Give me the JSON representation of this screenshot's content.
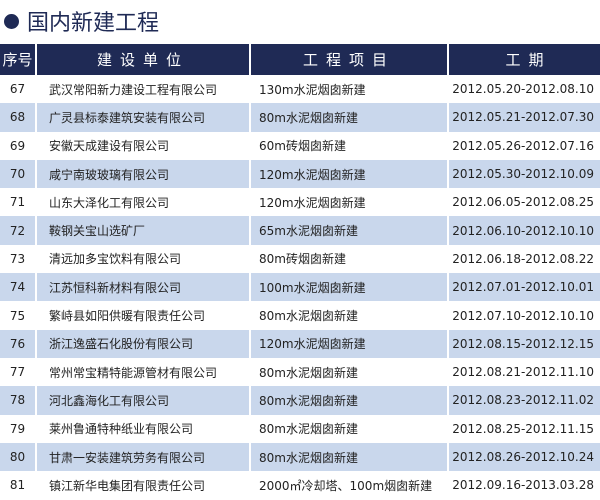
{
  "title": "国内新建工程",
  "colors": {
    "header_bg": "#1f2a55",
    "alt_row": "#c9d7ec"
  },
  "headers": [
    "序号",
    "建设单位",
    "工程项目",
    "工期"
  ],
  "rows": [
    {
      "seq": "67",
      "unit": "武汉常阳新力建设工程有限公司",
      "project": "130m水泥烟囱新建",
      "period": "2012.05.20-2012.08.10"
    },
    {
      "seq": "68",
      "unit": "广灵县标泰建筑安装有限公司",
      "project": "80m水泥烟囱新建",
      "period": "2012.05.21-2012.07.30"
    },
    {
      "seq": "69",
      "unit": "安徽天成建设有限公司",
      "project": "60m砖烟囱新建",
      "period": "2012.05.26-2012.07.16"
    },
    {
      "seq": "70",
      "unit": "咸宁南玻玻璃有限公司",
      "project": "120m水泥烟囱新建",
      "period": "2012.05.30-2012.10.09"
    },
    {
      "seq": "71",
      "unit": "山东大泽化工有限公司",
      "project": "120m水泥烟囱新建",
      "period": "2012.06.05-2012.08.25"
    },
    {
      "seq": "72",
      "unit": "鞍钢关宝山选矿厂",
      "project": "65m水泥烟囱新建",
      "period": "2012.06.10-2012.10.10"
    },
    {
      "seq": "73",
      "unit": "清远加多宝饮料有限公司",
      "project": "80m砖烟囱新建",
      "period": "2012.06.18-2012.08.22"
    },
    {
      "seq": "74",
      "unit": "江苏恒科新材料有限公司",
      "project": "100m水泥烟囱新建",
      "period": "2012.07.01-2012.10.01"
    },
    {
      "seq": "75",
      "unit": "繁峙县如阳供暖有限责任公司",
      "project": "80m水泥烟囱新建",
      "period": "2012.07.10-2012.10.10"
    },
    {
      "seq": "76",
      "unit": "浙江逸盛石化股份有限公司",
      "project": "120m水泥烟囱新建",
      "period": "2012.08.15-2012.12.15"
    },
    {
      "seq": "77",
      "unit": "常州常宝精特能源管材有限公司",
      "project": "80m水泥烟囱新建",
      "period": "2012.08.21-2012.11.10"
    },
    {
      "seq": "78",
      "unit": "河北鑫海化工有限公司",
      "project": "80m水泥烟囱新建",
      "period": "2012.08.23-2012.11.02"
    },
    {
      "seq": "79",
      "unit": "莱州鲁通特种纸业有限公司",
      "project": "80m水泥烟囱新建",
      "period": "2012.08.25-2012.11.15"
    },
    {
      "seq": "80",
      "unit": "甘肃一安装建筑劳务有限公司",
      "project": "80m水泥烟囱新建",
      "period": "2012.08.26-2012.10.24"
    },
    {
      "seq": "81",
      "unit": "镇江新华电集团有限责任公司",
      "project": "2000㎡冷却塔、100m烟囱新建",
      "period": "2012.09.16-2013.03.28"
    }
  ]
}
